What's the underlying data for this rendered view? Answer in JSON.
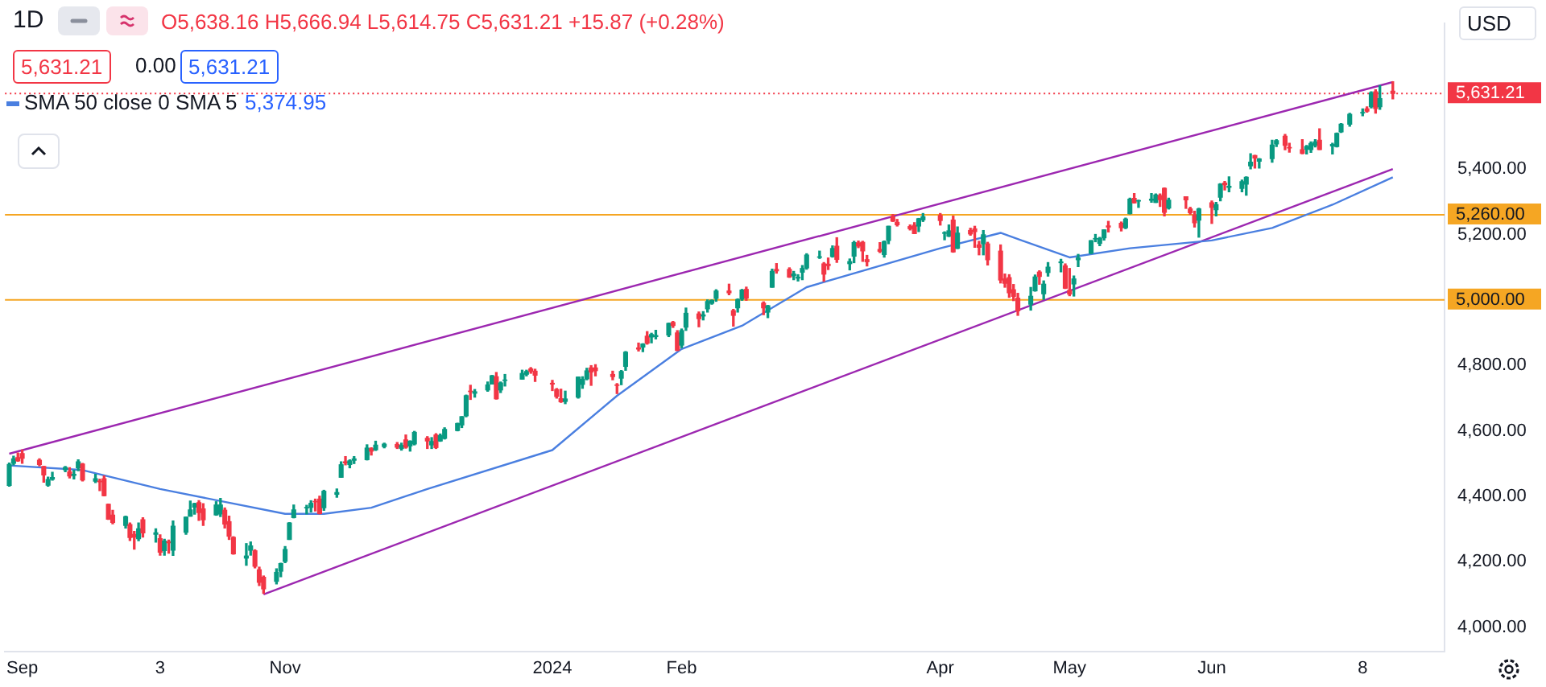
{
  "chart_data": {
    "type": "candlestick",
    "title": "1D",
    "annotations": [
      "O5,638.16 H5,666.94 L5,614.75 C5,631.21 +15.87 (+0.28%)",
      "5,631.21",
      "0.00",
      "5,631.21",
      "5,374.95",
      "USD"
    ],
    "x": [
      "2023-08-29",
      "2023-08-30",
      "2023-08-31",
      "2023-09-01",
      "2023-09-05",
      "2023-09-06",
      "2023-09-07",
      "2023-09-08",
      "2023-09-11",
      "2023-09-12",
      "2023-09-13",
      "2023-09-14",
      "2023-09-15",
      "2023-09-18",
      "2023-09-19",
      "2023-09-20",
      "2023-09-21",
      "2023-09-22",
      "2023-09-25",
      "2023-09-26",
      "2023-09-27",
      "2023-09-28",
      "2023-09-29",
      "2023-10-02",
      "2023-10-03",
      "2023-10-04",
      "2023-10-05",
      "2023-10-06",
      "2023-10-09",
      "2023-10-10",
      "2023-10-11",
      "2023-10-12",
      "2023-10-13",
      "2023-10-16",
      "2023-10-17",
      "2023-10-18",
      "2023-10-19",
      "2023-10-20",
      "2023-10-23",
      "2023-10-24",
      "2023-10-25",
      "2023-10-26",
      "2023-10-27",
      "2023-10-30",
      "2023-10-31",
      "2023-11-01",
      "2023-11-02",
      "2023-11-03",
      "2023-11-06",
      "2023-11-07",
      "2023-11-08",
      "2023-11-09",
      "2023-11-10",
      "2023-11-13",
      "2023-11-14",
      "2023-11-15",
      "2023-11-16",
      "2023-11-17",
      "2023-11-20",
      "2023-11-21",
      "2023-11-22",
      "2023-11-24",
      "2023-11-27",
      "2023-11-28",
      "2023-11-29",
      "2023-11-30",
      "2023-12-01",
      "2023-12-04",
      "2023-12-05",
      "2023-12-06",
      "2023-12-07",
      "2023-12-08",
      "2023-12-11",
      "2023-12-12",
      "2023-12-13",
      "2023-12-14",
      "2023-12-15",
      "2023-12-18",
      "2023-12-19",
      "2023-12-20",
      "2023-12-21",
      "2023-12-22",
      "2023-12-26",
      "2023-12-27",
      "2023-12-28",
      "2023-12-29",
      "2024-01-02",
      "2024-01-03",
      "2024-01-04",
      "2024-01-05",
      "2024-01-08",
      "2024-01-09",
      "2024-01-10",
      "2024-01-11",
      "2024-01-12",
      "2024-01-16",
      "2024-01-17",
      "2024-01-18",
      "2024-01-19",
      "2024-01-22",
      "2024-01-23",
      "2024-01-24",
      "2024-01-25",
      "2024-01-26",
      "2024-01-29",
      "2024-01-30",
      "2024-01-31",
      "2024-02-01",
      "2024-02-02",
      "2024-02-05",
      "2024-02-06",
      "2024-02-07",
      "2024-02-08",
      "2024-02-09",
      "2024-02-12",
      "2024-02-13",
      "2024-02-14",
      "2024-02-15",
      "2024-02-16",
      "2024-02-20",
      "2024-02-21",
      "2024-02-22",
      "2024-02-23",
      "2024-02-26",
      "2024-02-27",
      "2024-02-28",
      "2024-02-29",
      "2024-03-01",
      "2024-03-04",
      "2024-03-05",
      "2024-03-06",
      "2024-03-07",
      "2024-03-08",
      "2024-03-11",
      "2024-03-12",
      "2024-03-13",
      "2024-03-14",
      "2024-03-15",
      "2024-03-18",
      "2024-03-19",
      "2024-03-20",
      "2024-03-21",
      "2024-03-22",
      "2024-03-25",
      "2024-03-26",
      "2024-03-27",
      "2024-03-28",
      "2024-04-01",
      "2024-04-02",
      "2024-04-03",
      "2024-04-04",
      "2024-04-05",
      "2024-04-08",
      "2024-04-09",
      "2024-04-10",
      "2024-04-11",
      "2024-04-12",
      "2024-04-15",
      "2024-04-16",
      "2024-04-17",
      "2024-04-18",
      "2024-04-19",
      "2024-04-22",
      "2024-04-23",
      "2024-04-24",
      "2024-04-25",
      "2024-04-26",
      "2024-04-29",
      "2024-04-30",
      "2024-05-01",
      "2024-05-02",
      "2024-05-03",
      "2024-05-06",
      "2024-05-07",
      "2024-05-08",
      "2024-05-09",
      "2024-05-10",
      "2024-05-13",
      "2024-05-14",
      "2024-05-15",
      "2024-05-16",
      "2024-05-17",
      "2024-05-20",
      "2024-05-21",
      "2024-05-22",
      "2024-05-23",
      "2024-05-24",
      "2024-05-28",
      "2024-05-29",
      "2024-05-30",
      "2024-05-31",
      "2024-06-03",
      "2024-06-04",
      "2024-06-05",
      "2024-06-06",
      "2024-06-07",
      "2024-06-10",
      "2024-06-11",
      "2024-06-12",
      "2024-06-13",
      "2024-06-14",
      "2024-06-17",
      "2024-06-18",
      "2024-06-20",
      "2024-06-21",
      "2024-06-24",
      "2024-06-25",
      "2024-06-26",
      "2024-06-27",
      "2024-06-28",
      "2024-07-01",
      "2024-07-02",
      "2024-07-03",
      "2024-07-05",
      "2024-07-08",
      "2024-07-09",
      "2024-07-10",
      "2024-07-11",
      "2024-07-12",
      "2024-07-15"
    ],
    "ohlc": [
      [
        4433,
        4501,
        4431,
        4497
      ],
      [
        4501,
        4522,
        4496,
        4514
      ],
      [
        4518,
        4532,
        4507,
        4508
      ],
      [
        4530,
        4541,
        4501,
        4516
      ],
      [
        4510,
        4514,
        4493,
        4497
      ],
      [
        4491,
        4491,
        4443,
        4465
      ],
      [
        4434,
        4458,
        4431,
        4451
      ],
      [
        4452,
        4473,
        4449,
        4457
      ],
      [
        4481,
        4491,
        4475,
        4488
      ],
      [
        4474,
        4487,
        4456,
        4462
      ],
      [
        4464,
        4479,
        4453,
        4467
      ],
      [
        4487,
        4511,
        4478,
        4505
      ],
      [
        4498,
        4500,
        4447,
        4450
      ],
      [
        4446,
        4467,
        4442,
        4453
      ],
      [
        4446,
        4452,
        4417,
        4444
      ],
      [
        4453,
        4462,
        4401,
        4402
      ],
      [
        4375,
        4376,
        4329,
        4330
      ],
      [
        4342,
        4357,
        4316,
        4320
      ],
      [
        4311,
        4339,
        4303,
        4337
      ],
      [
        4313,
        4318,
        4265,
        4274
      ],
      [
        4283,
        4292,
        4238,
        4275
      ],
      [
        4270,
        4318,
        4264,
        4300
      ],
      [
        4328,
        4334,
        4275,
        4288
      ],
      [
        4284,
        4300,
        4260,
        4288
      ],
      [
        4270,
        4282,
        4220,
        4229
      ],
      [
        4234,
        4268,
        4220,
        4263
      ],
      [
        4260,
        4266,
        4226,
        4258
      ],
      [
        4235,
        4324,
        4219,
        4308
      ],
      [
        4290,
        4336,
        4284,
        4336
      ],
      [
        4339,
        4385,
        4339,
        4358
      ],
      [
        4367,
        4378,
        4345,
        4377
      ],
      [
        4380,
        4386,
        4326,
        4350
      ],
      [
        4361,
        4377,
        4311,
        4328
      ],
      [
        4343,
        4383,
        4342,
        4373
      ],
      [
        4346,
        4393,
        4338,
        4373
      ],
      [
        4357,
        4364,
        4303,
        4315
      ],
      [
        4322,
        4339,
        4268,
        4278
      ],
      [
        4274,
        4276,
        4223,
        4224
      ],
      [
        4211,
        4255,
        4189,
        4217
      ],
      [
        4235,
        4260,
        4220,
        4248
      ],
      [
        4233,
        4236,
        4181,
        4186
      ],
      [
        4175,
        4183,
        4127,
        4137
      ],
      [
        4152,
        4156,
        4103,
        4117
      ],
      [
        4140,
        4178,
        4132,
        4167
      ],
      [
        4171,
        4195,
        4154,
        4194
      ],
      [
        4201,
        4246,
        4197,
        4237
      ],
      [
        4268,
        4319,
        4268,
        4318
      ],
      [
        4335,
        4373,
        4334,
        4358
      ],
      [
        4365,
        4372,
        4346,
        4365
      ],
      [
        4366,
        4386,
        4352,
        4378
      ],
      [
        4384,
        4391,
        4355,
        4383
      ],
      [
        4391,
        4400,
        4346,
        4347
      ],
      [
        4365,
        4418,
        4357,
        4415
      ],
      [
        4406,
        4422,
        4397,
        4411
      ],
      [
        4458,
        4505,
        4458,
        4496
      ],
      [
        4505,
        4521,
        4496,
        4502
      ],
      [
        4497,
        4511,
        4487,
        4508
      ],
      [
        4510,
        4521,
        4500,
        4514
      ],
      [
        4512,
        4557,
        4511,
        4547
      ],
      [
        4545,
        4548,
        4526,
        4538
      ],
      [
        4542,
        4568,
        4540,
        4556
      ],
      [
        4552,
        4562,
        4548,
        4559
      ],
      [
        4558,
        4564,
        4546,
        4550
      ],
      [
        4546,
        4562,
        4541,
        4555
      ],
      [
        4572,
        4587,
        4547,
        4550
      ],
      [
        4554,
        4569,
        4538,
        4568
      ],
      [
        4560,
        4598,
        4557,
        4595
      ],
      [
        4577,
        4582,
        4546,
        4569
      ],
      [
        4557,
        4579,
        4546,
        4567
      ],
      [
        4587,
        4591,
        4546,
        4549
      ],
      [
        4569,
        4590,
        4568,
        4585
      ],
      [
        4577,
        4609,
        4575,
        4604
      ],
      [
        4601,
        4623,
        4600,
        4622
      ],
      [
        4618,
        4643,
        4610,
        4643
      ],
      [
        4646,
        4709,
        4643,
        4707
      ],
      [
        4721,
        4739,
        4696,
        4720
      ],
      [
        4715,
        4726,
        4703,
        4719
      ],
      [
        4725,
        4749,
        4721,
        4740
      ],
      [
        4743,
        4769,
        4743,
        4768
      ],
      [
        4765,
        4778,
        4697,
        4698
      ],
      [
        4725,
        4749,
        4717,
        4746
      ],
      [
        4754,
        4772,
        4737,
        4755
      ],
      [
        4758,
        4785,
        4758,
        4775
      ],
      [
        4773,
        4785,
        4768,
        4781
      ],
      [
        4789,
        4793,
        4776,
        4782
      ],
      [
        4782,
        4788,
        4751,
        4770
      ],
      [
        4745,
        4754,
        4723,
        4743
      ],
      [
        4726,
        4729,
        4700,
        4705
      ],
      [
        4698,
        4727,
        4687,
        4689
      ],
      [
        4690,
        4721,
        4683,
        4697
      ],
      [
        4703,
        4764,
        4700,
        4764
      ],
      [
        4742,
        4765,
        4730,
        4757
      ],
      [
        4759,
        4791,
        4756,
        4783
      ],
      [
        4792,
        4799,
        4739,
        4780
      ],
      [
        4792,
        4802,
        4768,
        4784
      ],
      [
        4772,
        4782,
        4756,
        4766
      ],
      [
        4740,
        4744,
        4714,
        4739
      ],
      [
        4761,
        4784,
        4741,
        4781
      ],
      [
        4797,
        4842,
        4785,
        4840
      ],
      [
        4853,
        4868,
        4844,
        4850
      ],
      [
        4856,
        4866,
        4842,
        4865
      ],
      [
        4889,
        4903,
        4865,
        4868
      ],
      [
        4887,
        4898,
        4869,
        4894
      ],
      [
        4888,
        4907,
        4881,
        4891
      ],
      [
        4893,
        4929,
        4888,
        4928
      ],
      [
        4931,
        4934,
        4916,
        4922
      ],
      [
        4899,
        4906,
        4845,
        4846
      ],
      [
        4862,
        4911,
        4854,
        4906
      ],
      [
        4917,
        4975,
        4907,
        4959
      ],
      [
        4957,
        4963,
        4918,
        4943
      ],
      [
        4951,
        4964,
        4939,
        4954
      ],
      [
        4973,
        5000,
        4963,
        4995
      ],
      [
        4990,
        5000,
        4987,
        4998
      ],
      [
        5005,
        5031,
        4996,
        5027
      ],
      [
        5027,
        5048,
        5016,
        5022
      ],
      [
        4967,
        4971,
        4920,
        4953
      ],
      [
        4976,
        5003,
        4963,
        5001
      ],
      [
        5003,
        5032,
        4999,
        5030
      ],
      [
        5032,
        5039,
        4999,
        5006
      ],
      [
        4990,
        4994,
        4955,
        4976
      ],
      [
        4963,
        4983,
        4946,
        4982
      ],
      [
        5039,
        5094,
        5039,
        5087
      ],
      [
        5093,
        5111,
        5082,
        5089
      ],
      [
        5093,
        5098,
        5069,
        5070
      ],
      [
        5074,
        5087,
        5062,
        5079
      ],
      [
        5067,
        5077,
        5058,
        5069
      ],
      [
        5085,
        5105,
        5062,
        5096
      ],
      [
        5098,
        5141,
        5094,
        5137
      ],
      [
        5131,
        5149,
        5127,
        5131
      ],
      [
        5110,
        5114,
        5057,
        5079
      ],
      [
        5109,
        5128,
        5093,
        5105
      ],
      [
        5133,
        5165,
        5131,
        5157
      ],
      [
        5164,
        5190,
        5115,
        5124
      ],
      [
        5111,
        5125,
        5092,
        5117
      ],
      [
        5134,
        5179,
        5114,
        5175
      ],
      [
        5174,
        5180,
        5160,
        5165
      ],
      [
        5176,
        5179,
        5118,
        5150
      ],
      [
        5123,
        5136,
        5104,
        5117
      ],
      [
        5154,
        5175,
        5145,
        5149
      ],
      [
        5139,
        5180,
        5131,
        5178
      ],
      [
        5182,
        5225,
        5172,
        5225
      ],
      [
        5254,
        5261,
        5240,
        5241
      ],
      [
        5237,
        5246,
        5226,
        5230
      ],
      [
        5224,
        5229,
        5214,
        5218
      ],
      [
        5228,
        5236,
        5203,
        5203
      ],
      [
        5226,
        5249,
        5209,
        5248
      ],
      [
        5245,
        5264,
        5240,
        5254
      ],
      [
        5258,
        5264,
        5229,
        5243
      ],
      [
        5204,
        5208,
        5184,
        5205
      ],
      [
        5195,
        5229,
        5194,
        5211
      ],
      [
        5244,
        5256,
        5146,
        5147
      ],
      [
        5158,
        5223,
        5157,
        5204
      ],
      [
        5212,
        5219,
        5198,
        5202
      ],
      [
        5217,
        5225,
        5161,
        5209
      ],
      [
        5168,
        5179,
        5138,
        5161
      ],
      [
        5172,
        5212,
        5138,
        5199
      ],
      [
        5171,
        5176,
        5107,
        5123
      ],
      [
        5149,
        5168,
        5052,
        5061
      ],
      [
        5064,
        5079,
        5039,
        5051
      ],
      [
        5068,
        5077,
        5008,
        5022
      ],
      [
        5031,
        5047,
        4998,
        5011
      ],
      [
        5005,
        5020,
        4953,
        4967
      ],
      [
        4987,
        5038,
        4969,
        5011
      ],
      [
        5028,
        5076,
        5027,
        5070
      ],
      [
        5085,
        5089,
        5048,
        5072
      ],
      [
        5019,
        5058,
        5002,
        5048
      ],
      [
        5084,
        5114,
        5073,
        5100
      ],
      [
        5114,
        5124,
        5086,
        5116
      ],
      [
        5104,
        5110,
        5035,
        5036
      ],
      [
        5029,
        5096,
        5013,
        5018
      ],
      [
        5049,
        5073,
        5012,
        5064
      ],
      [
        5123,
        5139,
        5102,
        5128
      ],
      [
        5143,
        5181,
        5142,
        5181
      ],
      [
        5187,
        5200,
        5178,
        5187
      ],
      [
        5173,
        5191,
        5166,
        5188
      ],
      [
        5190,
        5214,
        5183,
        5214
      ],
      [
        5226,
        5240,
        5208,
        5223
      ],
      [
        5234,
        5238,
        5211,
        5221
      ],
      [
        5221,
        5250,
        5218,
        5247
      ],
      [
        5264,
        5311,
        5263,
        5308
      ],
      [
        5310,
        5325,
        5296,
        5297
      ],
      [
        5303,
        5305,
        5283,
        5303
      ],
      [
        5305,
        5325,
        5299,
        5308
      ],
      [
        5298,
        5324,
        5298,
        5321
      ],
      [
        5319,
        5324,
        5286,
        5307
      ],
      [
        5341,
        5342,
        5257,
        5268
      ],
      [
        5281,
        5311,
        5278,
        5305
      ],
      [
        5315,
        5315,
        5280,
        5306
      ],
      [
        5278,
        5283,
        5262,
        5267
      ],
      [
        5259,
        5271,
        5223,
        5236
      ],
      [
        5244,
        5280,
        5192,
        5278
      ],
      [
        5297,
        5302,
        5234,
        5283
      ],
      [
        5276,
        5298,
        5257,
        5291
      ],
      [
        5314,
        5355,
        5303,
        5354
      ],
      [
        5357,
        5362,
        5336,
        5352
      ],
      [
        5344,
        5376,
        5331,
        5347
      ],
      [
        5341,
        5366,
        5331,
        5361
      ],
      [
        5354,
        5376,
        5320,
        5375
      ],
      [
        5410,
        5447,
        5401,
        5421
      ],
      [
        5441,
        5442,
        5403,
        5434
      ],
      [
        5424,
        5432,
        5403,
        5431
      ],
      [
        5432,
        5488,
        5421,
        5473
      ],
      [
        5477,
        5490,
        5469,
        5487
      ],
      [
        5500,
        5506,
        5459,
        5473
      ],
      [
        5466,
        5479,
        5452,
        5465
      ],
      [
        5459,
        5490,
        5447,
        5448
      ],
      [
        5461,
        5472,
        5446,
        5469
      ],
      [
        5460,
        5483,
        5451,
        5478
      ],
      [
        5473,
        5490,
        5468,
        5483
      ],
      [
        5488,
        5523,
        5460,
        5460
      ],
      [
        5471,
        5479,
        5446,
        5475
      ],
      [
        5469,
        5510,
        5468,
        5509
      ],
      [
        5514,
        5539,
        5512,
        5537
      ],
      [
        5537,
        5570,
        5531,
        5567
      ],
      [
        5572,
        5584,
        5563,
        5572
      ],
      [
        5584,
        5590,
        5574,
        5577
      ],
      [
        5591,
        5636,
        5587,
        5633
      ],
      [
        5636,
        5642,
        5571,
        5585
      ],
      [
        5591,
        5655,
        5583,
        5615
      ],
      [
        5638.16,
        5666.94,
        5614.75,
        5631.21
      ]
    ],
    "series": [
      {
        "type": "line",
        "name": "SMA 50 close 0 SMA 5",
        "color": "#4a7fe0",
        "x": [
          "2023-08-29",
          "2023-09-15",
          "2023-10-03",
          "2023-11-01",
          "2023-11-10",
          "2023-11-21",
          "2023-12-04",
          "2024-01-02",
          "2024-01-17",
          "2024-02-01",
          "2024-02-15",
          "2024-03-01",
          "2024-04-01",
          "2024-04-15",
          "2024-05-01",
          "2024-05-15",
          "2024-06-03",
          "2024-06-17",
          "2024-07-01",
          "2024-07-15"
        ],
        "values": [
          4494,
          4480,
          4422,
          4346,
          4346,
          4365,
          4422,
          4541,
          4707,
          4850,
          4921,
          5039,
          5158,
          5205,
          5130,
          5158,
          5182,
          5220,
          5291,
          5375
        ]
      },
      {
        "type": "line",
        "color": "#9c27b0",
        "x": [
          "2023-08-29",
          "2024-07-15"
        ],
        "values": [
          4530,
          5666
        ]
      },
      {
        "type": "line",
        "color": "#9c27b0",
        "x": [
          "2023-10-27",
          "2024-07-15"
        ],
        "values": [
          4100,
          5400
        ]
      }
    ],
    "ref_lines": [
      {
        "axis": "y",
        "value": 5260,
        "label": "5,260.00",
        "color": "#f5a623",
        "line_style": "solid"
      },
      {
        "axis": "y",
        "value": 5000,
        "label": "5,000.00",
        "color": "#f5a623",
        "line_style": "solid"
      },
      {
        "axis": "y",
        "value": 5631.21,
        "label": "5,631.21",
        "color": "#f23645",
        "line_style": "dotted"
      }
    ],
    "xlim": [
      "2023-08-28",
      "2024-07-27"
    ],
    "xticks": [
      {
        "value": "2023-09-01",
        "label": "Sep"
      },
      {
        "value": "2023-10-03",
        "label": "3"
      },
      {
        "value": "2023-11-01",
        "label": "Nov"
      },
      {
        "value": "2024-01-02",
        "label": "2024"
      },
      {
        "value": "2024-02-01",
        "label": "Feb"
      },
      {
        "value": "2024-04-01",
        "label": "Apr"
      },
      {
        "value": "2024-05-01",
        "label": "May"
      },
      {
        "value": "2024-06-03",
        "label": "Jun"
      },
      {
        "value": "2024-07-08",
        "label": "8"
      }
    ],
    "ylim": [
      3925,
      5845
    ],
    "yticks": [
      {
        "value": 4000,
        "label": "4,000.00"
      },
      {
        "value": 4200,
        "label": "4,200.00"
      },
      {
        "value": 4400,
        "label": "4,400.00"
      },
      {
        "value": 4600,
        "label": "4,600.00"
      },
      {
        "value": 4800,
        "label": "4,800.00"
      },
      {
        "value": 5000,
        "label": "5,000.00"
      },
      {
        "value": 5200,
        "label": "5,200.00"
      },
      {
        "value": 5400,
        "label": "5,400.00"
      }
    ]
  }
}
